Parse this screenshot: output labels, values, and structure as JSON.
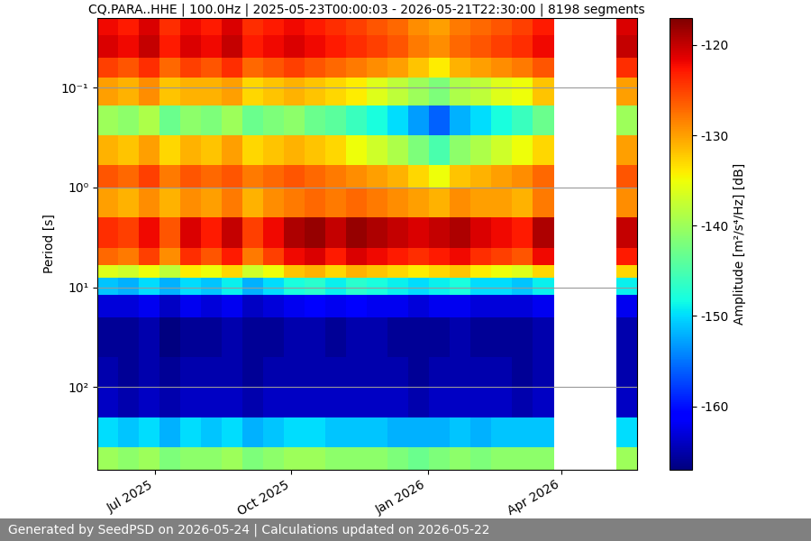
{
  "chart_data": {
    "type": "heatmap",
    "title": "CQ.PARA..HHE | 100.0Hz | 2025-05-23T00:00:03 - 2026-05-21T22:30:00 | 8198 segments",
    "ylabel": "Period [s]",
    "colorbar_label": "Amplitude [m²/s⁴/Hz] [dB]",
    "footer": "Generated by SeedPSD on 2026-05-24 | Calculations updated on 2026-05-22",
    "log": "y",
    "grid": true,
    "color": "jet",
    "xlim": [
      "2025-05-23T00:00:03",
      "2026-05-21T22:30:00"
    ],
    "ylim": [
      670,
      0.02
    ],
    "xticks": [
      {
        "value": "2025-07-01",
        "label": "Jul 2025"
      },
      {
        "value": "2025-10-01",
        "label": "Oct 2025"
      },
      {
        "value": "2026-01-01",
        "label": "Jan 2026"
      },
      {
        "value": "2026-04-01",
        "label": "Apr 2026"
      }
    ],
    "yticks": [
      {
        "value": 0.1,
        "label": "10⁻¹"
      },
      {
        "value": 1,
        "label": "10⁰"
      },
      {
        "value": 10,
        "label": "10¹"
      },
      {
        "value": 100,
        "label": "10²"
      }
    ],
    "clim": [
      -167,
      -117
    ],
    "cticks": [
      -160,
      -150,
      -140,
      -130,
      -120
    ],
    "x_edges": [
      "2025-05-23T00:00:03",
      "2025-06-06",
      "2025-06-20",
      "2025-07-04",
      "2025-07-18",
      "2025-08-01",
      "2025-08-15",
      "2025-08-29",
      "2025-09-12",
      "2025-09-26",
      "2025-10-10",
      "2025-10-24",
      "2025-11-07",
      "2025-11-21",
      "2025-12-05",
      "2025-12-19",
      "2026-01-02",
      "2026-01-16",
      "2026-01-30",
      "2026-02-13",
      "2026-02-27",
      "2026-03-13",
      "2026-03-27",
      "2026-04-10",
      "2026-04-24",
      "2026-05-08",
      "2026-05-21T22:30:00"
    ],
    "y_edges": [
      0.02,
      0.03,
      0.05,
      0.08,
      0.15,
      0.3,
      0.6,
      1,
      2,
      4,
      6,
      8,
      12,
      20,
      50,
      100,
      200,
      400,
      670
    ],
    "cells": [
      [
        -122,
        -121,
        -125,
        -130,
        -140,
        -131,
        -126,
        -130,
        -124,
        -127,
        -136,
        -151,
        -163,
        -166,
        -165,
        -164,
        -150,
        -140
      ],
      [
        -123,
        -122,
        -126,
        -131,
        -141,
        -132,
        -127,
        -131,
        -125,
        -128,
        -137,
        -152,
        -163,
        -166,
        -166,
        -165,
        -151,
        -141
      ],
      [
        -121,
        -120,
        -124,
        -129,
        -139,
        -130,
        -125,
        -129,
        -122,
        -125,
        -135,
        -150,
        -162,
        -165,
        -165,
        -164,
        -150,
        -140
      ],
      [
        -124,
        -123,
        -127,
        -132,
        -143,
        -133,
        -128,
        -131,
        -126,
        -129,
        -138,
        -152,
        -164,
        -167,
        -166,
        -165,
        -152,
        -142
      ],
      [
        -122,
        -121,
        -125,
        -131,
        -141,
        -131,
        -126,
        -129,
        -121,
        -124,
        -134,
        -150,
        -162,
        -166,
        -165,
        -164,
        -150,
        -141
      ],
      [
        -123,
        -122,
        -126,
        -131,
        -142,
        -132,
        -127,
        -130,
        -123,
        -126,
        -135,
        -151,
        -163,
        -166,
        -165,
        -164,
        -151,
        -141
      ],
      [
        -121,
        -120,
        -124,
        -130,
        -140,
        -130,
        -126,
        -128,
        -120,
        -123,
        -133,
        -149,
        -162,
        -165,
        -165,
        -164,
        -150,
        -140
      ],
      [
        -124,
        -123,
        -127,
        -133,
        -143,
        -133,
        -128,
        -131,
        -125,
        -128,
        -137,
        -152,
        -164,
        -166,
        -166,
        -165,
        -152,
        -142
      ],
      [
        -123,
        -122,
        -126,
        -132,
        -142,
        -132,
        -127,
        -129,
        -122,
        -125,
        -135,
        -150,
        -163,
        -166,
        -165,
        -164,
        -151,
        -141
      ],
      [
        -122,
        -121,
        -125,
        -131,
        -141,
        -131,
        -126,
        -128,
        -119,
        -122,
        -132,
        -148,
        -162,
        -165,
        -165,
        -164,
        -150,
        -140
      ],
      [
        -123,
        -122,
        -126,
        -132,
        -143,
        -132,
        -127,
        -127,
        -118,
        -121,
        -131,
        -147,
        -161,
        -165,
        -165,
        -164,
        -150,
        -140
      ],
      [
        -124,
        -123,
        -127,
        -133,
        -144,
        -133,
        -128,
        -128,
        -120,
        -123,
        -133,
        -149,
        -162,
        -166,
        -165,
        -164,
        -151,
        -141
      ],
      [
        -125,
        -124,
        -128,
        -134,
        -146,
        -135,
        -129,
        -127,
        -118,
        -121,
        -131,
        -147,
        -161,
        -165,
        -165,
        -164,
        -151,
        -141
      ],
      [
        -126,
        -125,
        -129,
        -136,
        -148,
        -137,
        -130,
        -128,
        -119,
        -122,
        -132,
        -148,
        -162,
        -165,
        -165,
        -164,
        -151,
        -141
      ],
      [
        -127,
        -126,
        -130,
        -138,
        -150,
        -139,
        -131,
        -129,
        -120,
        -123,
        -133,
        -149,
        -162,
        -166,
        -165,
        -164,
        -152,
        -142
      ],
      [
        -129,
        -128,
        -132,
        -140,
        -153,
        -142,
        -133,
        -130,
        -121,
        -124,
        -134,
        -150,
        -163,
        -166,
        -166,
        -165,
        -152,
        -143
      ],
      [
        -130,
        -129,
        -134,
        -142,
        -156,
        -145,
        -135,
        -131,
        -120,
        -123,
        -133,
        -149,
        -162,
        -166,
        -165,
        -164,
        -152,
        -142
      ],
      [
        -128,
        -127,
        -131,
        -139,
        -152,
        -141,
        -132,
        -129,
        -119,
        -122,
        -132,
        -148,
        -162,
        -165,
        -165,
        -164,
        -151,
        -141
      ],
      [
        -127,
        -126,
        -130,
        -138,
        -150,
        -139,
        -131,
        -130,
        -121,
        -124,
        -134,
        -150,
        -163,
        -166,
        -165,
        -164,
        -152,
        -142
      ],
      [
        -126,
        -125,
        -129,
        -136,
        -148,
        -137,
        -130,
        -130,
        -122,
        -125,
        -135,
        -150,
        -163,
        -166,
        -165,
        -164,
        -151,
        -141
      ],
      [
        -125,
        -124,
        -128,
        -135,
        -146,
        -135,
        -129,
        -131,
        -123,
        -126,
        -136,
        -151,
        -163,
        -166,
        -166,
        -165,
        -151,
        -141
      ],
      [
        -123,
        -122,
        -126,
        -132,
        -143,
        -133,
        -127,
        -128,
        -119,
        -122,
        -133,
        -149,
        -162,
        -165,
        -165,
        -164,
        -151,
        -141
      ],
      [
        null,
        null,
        null,
        null,
        null,
        null,
        null,
        null,
        null,
        null,
        null,
        null,
        null,
        null,
        null,
        null,
        null,
        null
      ],
      [
        null,
        null,
        null,
        null,
        null,
        null,
        null,
        null,
        null,
        null,
        null,
        null,
        null,
        null,
        null,
        null,
        null,
        null
      ],
      [
        null,
        null,
        null,
        null,
        null,
        null,
        null,
        null,
        null,
        null,
        null,
        null,
        null,
        null,
        null,
        null,
        null,
        null
      ],
      [
        -121,
        -120,
        -124,
        -130,
        -140,
        -130,
        -126,
        -129,
        -120,
        -123,
        -133,
        -149,
        -162,
        -165,
        -165,
        -164,
        -150,
        -140
      ]
    ]
  }
}
